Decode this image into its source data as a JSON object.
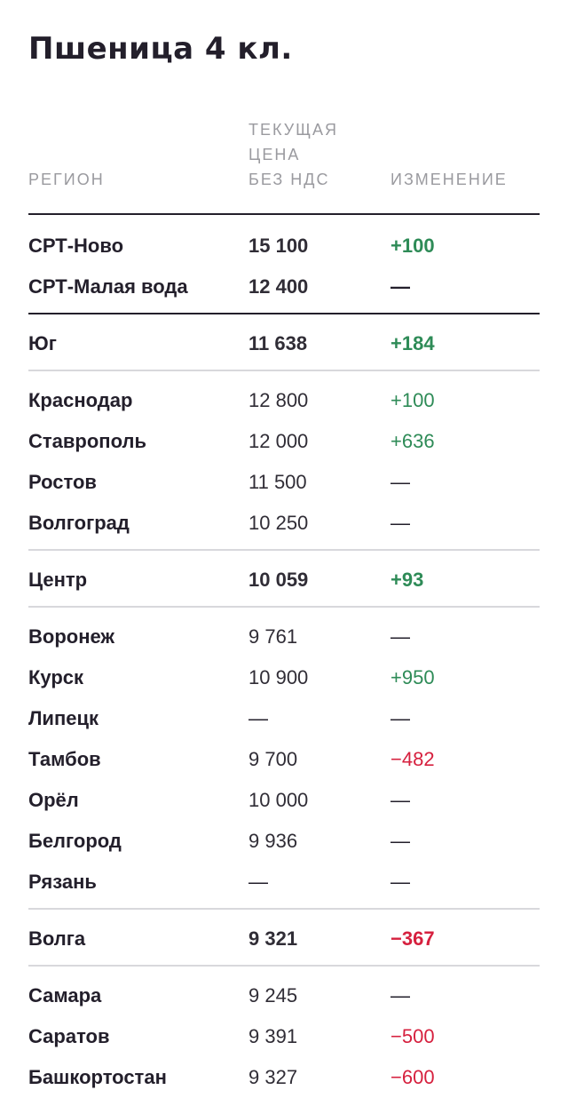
{
  "title": "Пшеница 4 кл.",
  "header": {
    "region": "РЕГИОН",
    "price_line1": "ТЕКУЩАЯ",
    "price_line2": "ЦЕНА",
    "price_line3": "БЕЗ НДС",
    "change": "ИЗМЕНЕНИЕ"
  },
  "colors": {
    "positive": "#2e8b57",
    "negative": "#d6203e",
    "text": "#231f2b",
    "muted": "#9a9a9f",
    "divider": "#d8d8dc"
  },
  "groups": [
    {
      "rows": [
        {
          "region": "СРТ-Ново",
          "price": "15 100",
          "change": "+100",
          "type": "summary",
          "trend": "pos"
        },
        {
          "region": "СРТ-Малая вода",
          "price": "12 400",
          "change": "—",
          "type": "summary",
          "trend": "none"
        }
      ]
    },
    {
      "rows": [
        {
          "region": "Юг",
          "price": "11 638",
          "change": "+184",
          "type": "summary",
          "trend": "pos"
        }
      ]
    },
    {
      "rows": [
        {
          "region": "Краснодар",
          "price": "12 800",
          "change": "+100",
          "type": "detail",
          "trend": "pos"
        },
        {
          "region": "Ставрополь",
          "price": "12 000",
          "change": "+636",
          "type": "detail",
          "trend": "pos"
        },
        {
          "region": "Ростов",
          "price": "11 500",
          "change": "—",
          "type": "detail",
          "trend": "none"
        },
        {
          "region": "Волгоград",
          "price": "10 250",
          "change": "—",
          "type": "detail",
          "trend": "none"
        }
      ]
    },
    {
      "rows": [
        {
          "region": "Центр",
          "price": "10 059",
          "change": "+93",
          "type": "summary",
          "trend": "pos"
        }
      ]
    },
    {
      "rows": [
        {
          "region": "Воронеж",
          "price": "9 761",
          "change": "—",
          "type": "detail",
          "trend": "none"
        },
        {
          "region": "Курск",
          "price": "10 900",
          "change": "+950",
          "type": "detail",
          "trend": "pos"
        },
        {
          "region": "Липецк",
          "price": "—",
          "change": "—",
          "type": "detail",
          "trend": "none"
        },
        {
          "region": "Тамбов",
          "price": "9 700",
          "change": "−482",
          "type": "detail",
          "trend": "neg"
        },
        {
          "region": "Орёл",
          "price": "10 000",
          "change": "—",
          "type": "detail",
          "trend": "none"
        },
        {
          "region": "Белгород",
          "price": "9 936",
          "change": "—",
          "type": "detail",
          "trend": "none"
        },
        {
          "region": "Рязань",
          "price": "—",
          "change": "—",
          "type": "detail",
          "trend": "none"
        }
      ]
    },
    {
      "rows": [
        {
          "region": "Волга",
          "price": "9 321",
          "change": "−367",
          "type": "summary",
          "trend": "neg"
        }
      ]
    },
    {
      "rows": [
        {
          "region": "Самара",
          "price": "9 245",
          "change": "—",
          "type": "detail",
          "trend": "none"
        },
        {
          "region": "Саратов",
          "price": "9 391",
          "change": "−500",
          "type": "detail",
          "trend": "neg"
        },
        {
          "region": "Башкортостан",
          "price": "9 327",
          "change": "−600",
          "type": "detail",
          "trend": "neg"
        }
      ]
    }
  ]
}
